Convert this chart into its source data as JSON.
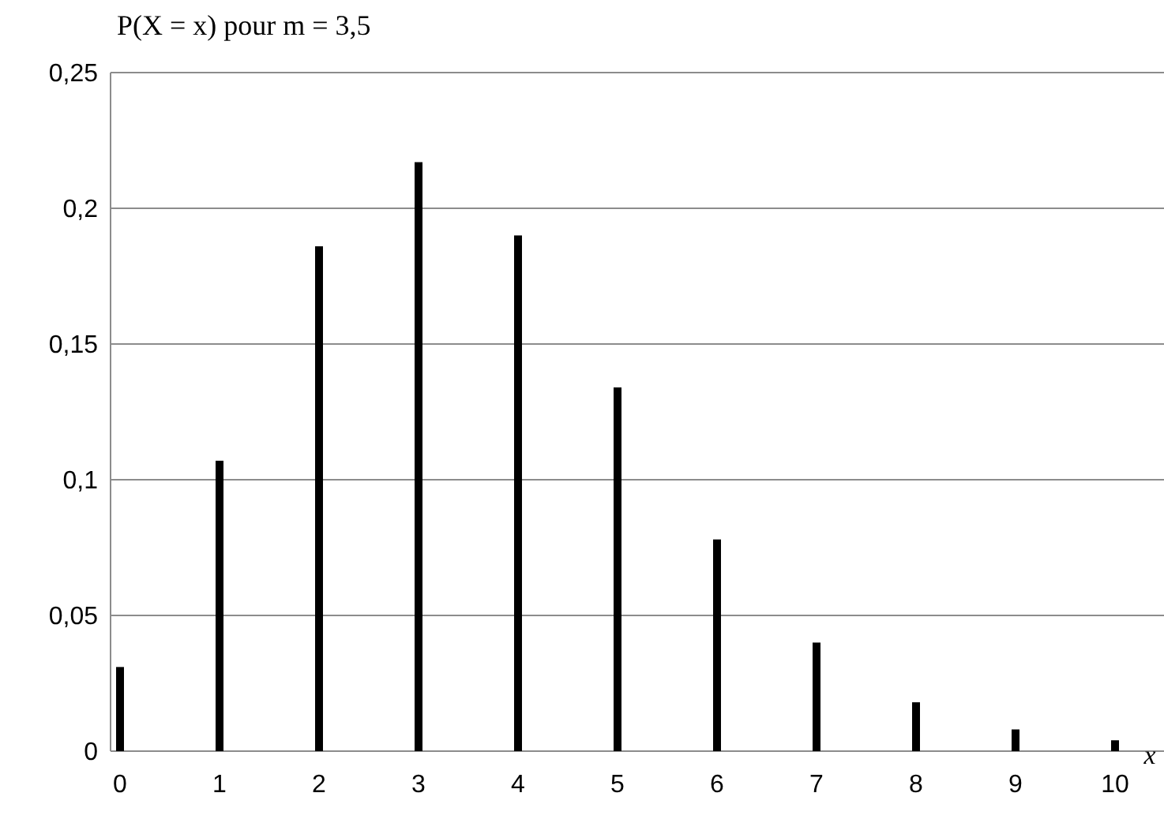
{
  "chart_data": {
    "type": "bar",
    "title": "P(X = x) pour m = 3,5",
    "xlabel": "x",
    "categories": [
      "0",
      "1",
      "2",
      "3",
      "4",
      "5",
      "6",
      "7",
      "8",
      "9",
      "10"
    ],
    "values": [
      0.031,
      0.107,
      0.186,
      0.217,
      0.19,
      0.134,
      0.078,
      0.04,
      0.018,
      0.008,
      0.004
    ],
    "color": "#000000",
    "ylim": [
      0,
      0.25
    ],
    "yticks": [
      0,
      {
        "value": 0.05,
        "label": "0,05"
      },
      {
        "value": 0.1,
        "label": "0,1"
      },
      {
        "value": 0.15,
        "label": "0,15"
      },
      {
        "value": 0.2,
        "label": "0,2"
      },
      {
        "value": 0.25,
        "label": "0,25"
      }
    ],
    "grid": "y"
  }
}
